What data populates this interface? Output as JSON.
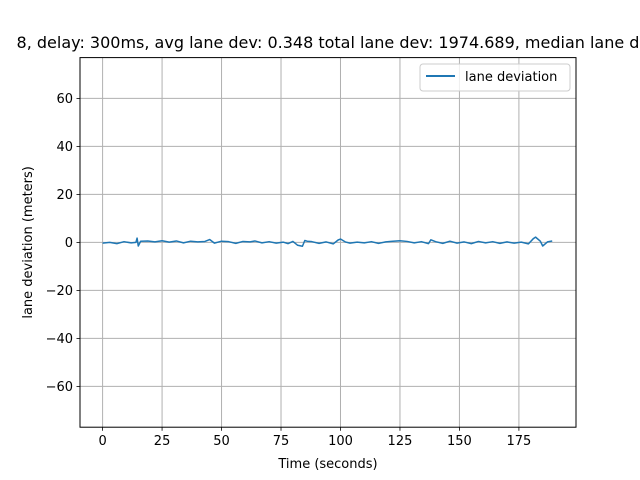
{
  "chart_data": {
    "type": "line",
    "title": "8, delay: 300ms, avg lane dev: 0.348 total lane dev: 1974.689, median lane d",
    "xlabel": "Time (seconds)",
    "ylabel": "lane deviation (meters)",
    "xlim": [
      -9.5,
      199
    ],
    "ylim": [
      -77,
      77
    ],
    "xticks": [
      0,
      25,
      50,
      75,
      100,
      125,
      150,
      175
    ],
    "yticks": [
      -60,
      -40,
      -20,
      0,
      20,
      40,
      60
    ],
    "grid": true,
    "legend_position": "top-right",
    "colors": {
      "series": "#1f77b4"
    },
    "series": [
      {
        "name": "lane deviation",
        "x": [
          0,
          3,
          6,
          9,
          12,
          14,
          14.5,
          15,
          16,
          19,
          22,
          25,
          28,
          31,
          34,
          37,
          40,
          43,
          45,
          47,
          50,
          53,
          56,
          59,
          62,
          64,
          67,
          70,
          73,
          76,
          78,
          80,
          82,
          84,
          85,
          86,
          88,
          91,
          94,
          97,
          99,
          100,
          102,
          104,
          107,
          110,
          113,
          116,
          119,
          122,
          125,
          128,
          131,
          134,
          137,
          138,
          140,
          143,
          146,
          149,
          152,
          155,
          158,
          161,
          164,
          167,
          170,
          173,
          176,
          179,
          181,
          182,
          184,
          185,
          187,
          189
        ],
        "y": [
          -0.3,
          0,
          -0.5,
          0.3,
          -0.2,
          0,
          1.8,
          -1.5,
          0.5,
          0.6,
          0.2,
          0.7,
          0.1,
          0.6,
          -0.2,
          0.5,
          0.2,
          0.4,
          1.2,
          -0.3,
          0.5,
          0.3,
          -0.4,
          0.4,
          0.2,
          0.6,
          -0.2,
          0.3,
          -0.3,
          0.1,
          -0.5,
          0.4,
          -1.2,
          -1.6,
          0.8,
          0.5,
          0.3,
          -0.4,
          0.2,
          -0.6,
          1.0,
          1.4,
          0.2,
          -0.3,
          0.1,
          -0.2,
          0.3,
          -0.4,
          0.2,
          0.5,
          0.7,
          0.4,
          -0.2,
          0.3,
          -0.5,
          1.1,
          0.3,
          -0.4,
          0.5,
          -0.3,
          0.2,
          -0.5,
          0.4,
          -0.2,
          0.3,
          -0.4,
          0.2,
          -0.3,
          0.1,
          -0.6,
          1.5,
          2.2,
          0.5,
          -1.5,
          0.2,
          0.6
        ]
      }
    ]
  }
}
